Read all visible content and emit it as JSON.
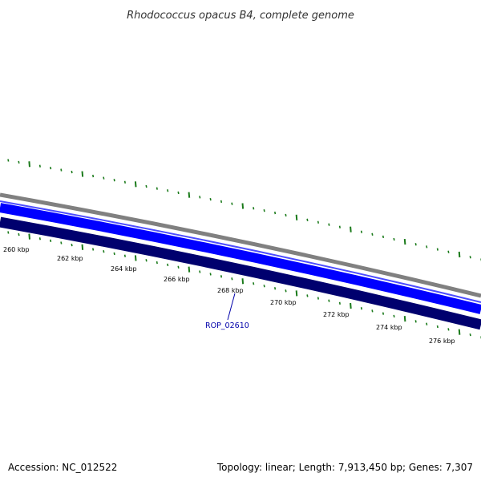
{
  "title": "Rhodococcus opacus B4, complete genome",
  "footer": {
    "accession": "Accession: NC_012522",
    "summary": "Topology: linear; Length: 7,913,450 bp; Genes: 7,307"
  },
  "tick_labels": [
    "260 kbp",
    "262 kbp",
    "264 kbp",
    "266 kbp",
    "268 kbp",
    "270 kbp",
    "272 kbp",
    "274 kbp",
    "276 kbp"
  ],
  "gene_label": "ROP_02610",
  "colors": {
    "backbone": "#808080",
    "forward_strand": "#0000ff",
    "reverse_strand": "#00006e",
    "ticks": "#1a7a1a",
    "gene_label": "#0000aa"
  }
}
